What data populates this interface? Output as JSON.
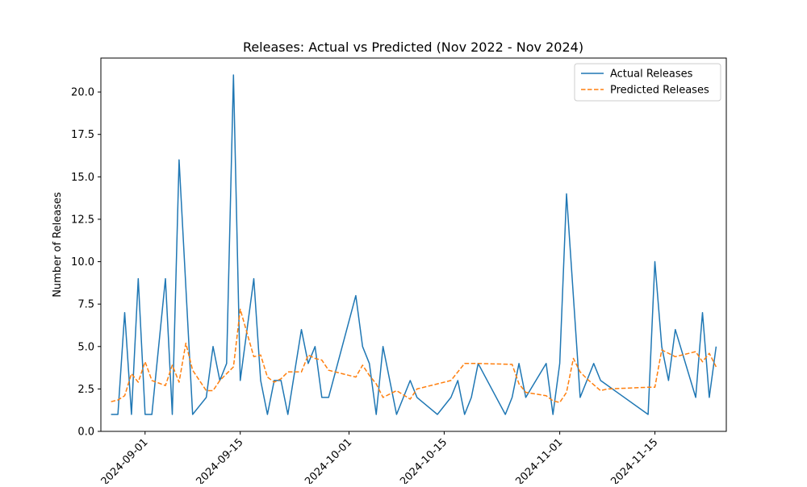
{
  "chart_data": {
    "type": "line",
    "title": "Releases: Actual vs Predicted (Nov 2022 - Nov 2024)",
    "xlabel": "",
    "ylabel": "Number of Releases",
    "ylim": [
      0,
      22
    ],
    "xlim": [
      "2024-08-25T12:00",
      "2024-11-25T12:00"
    ],
    "x_ticks": [
      "2024-09-01",
      "2024-09-15",
      "2024-10-01",
      "2024-10-15",
      "2024-11-01",
      "2024-11-15"
    ],
    "y_ticks": [
      0.0,
      2.5,
      5.0,
      7.5,
      10.0,
      12.5,
      15.0,
      17.5,
      20.0
    ],
    "grid": false,
    "legend_position": "upper right",
    "series": [
      {
        "name": "Actual Releases",
        "color": "#1f77b4",
        "style": "solid",
        "points": [
          [
            "2024-08-27",
            1
          ],
          [
            "2024-08-28",
            1
          ],
          [
            "2024-08-29",
            7
          ],
          [
            "2024-08-30",
            1
          ],
          [
            "2024-08-31",
            9
          ],
          [
            "2024-09-01",
            1
          ],
          [
            "2024-09-02",
            1
          ],
          [
            "2024-09-04",
            9
          ],
          [
            "2024-09-05",
            1
          ],
          [
            "2024-09-06",
            16
          ],
          [
            "2024-09-08",
            1
          ],
          [
            "2024-09-10",
            2
          ],
          [
            "2024-09-11",
            5
          ],
          [
            "2024-09-12",
            3
          ],
          [
            "2024-09-13",
            4
          ],
          [
            "2024-09-14",
            21
          ],
          [
            "2024-09-15",
            3
          ],
          [
            "2024-09-16",
            6
          ],
          [
            "2024-09-17",
            9
          ],
          [
            "2024-09-18",
            3
          ],
          [
            "2024-09-19",
            1
          ],
          [
            "2024-09-20",
            3
          ],
          [
            "2024-09-21",
            3
          ],
          [
            "2024-09-22",
            1
          ],
          [
            "2024-09-24",
            6
          ],
          [
            "2024-09-25",
            4
          ],
          [
            "2024-09-26",
            5
          ],
          [
            "2024-09-27",
            2
          ],
          [
            "2024-09-28",
            2
          ],
          [
            "2024-10-02",
            8
          ],
          [
            "2024-10-03",
            5
          ],
          [
            "2024-10-04",
            4
          ],
          [
            "2024-10-05",
            1
          ],
          [
            "2024-10-06",
            5
          ],
          [
            "2024-10-08",
            1
          ],
          [
            "2024-10-10",
            3
          ],
          [
            "2024-10-11",
            2
          ],
          [
            "2024-10-14",
            1
          ],
          [
            "2024-10-16",
            2
          ],
          [
            "2024-10-17",
            3
          ],
          [
            "2024-10-18",
            1
          ],
          [
            "2024-10-19",
            2
          ],
          [
            "2024-10-20",
            4
          ],
          [
            "2024-10-24",
            1
          ],
          [
            "2024-10-25",
            2
          ],
          [
            "2024-10-26",
            4
          ],
          [
            "2024-10-27",
            2
          ],
          [
            "2024-10-30",
            4
          ],
          [
            "2024-10-31",
            1
          ],
          [
            "2024-11-01",
            4
          ],
          [
            "2024-11-02",
            14
          ],
          [
            "2024-11-04",
            2
          ],
          [
            "2024-11-06",
            4
          ],
          [
            "2024-11-07",
            3
          ],
          [
            "2024-11-14",
            1
          ],
          [
            "2024-11-15",
            10
          ],
          [
            "2024-11-16",
            5
          ],
          [
            "2024-11-17",
            3
          ],
          [
            "2024-11-18",
            6
          ],
          [
            "2024-11-21",
            2
          ],
          [
            "2024-11-22",
            7
          ],
          [
            "2024-11-23",
            2
          ],
          [
            "2024-11-24",
            5
          ]
        ]
      },
      {
        "name": "Predicted Releases",
        "color": "#ff7f0e",
        "style": "dashed",
        "points": [
          [
            "2024-08-27",
            1.75
          ],
          [
            "2024-08-28",
            1.85
          ],
          [
            "2024-08-29",
            2.1
          ],
          [
            "2024-08-30",
            3.4
          ],
          [
            "2024-08-31",
            2.9
          ],
          [
            "2024-09-01",
            4.1
          ],
          [
            "2024-09-02",
            3.0
          ],
          [
            "2024-09-04",
            2.7
          ],
          [
            "2024-09-05",
            3.9
          ],
          [
            "2024-09-06",
            2.9
          ],
          [
            "2024-09-07",
            5.2
          ],
          [
            "2024-09-08",
            3.6
          ],
          [
            "2024-09-10",
            2.4
          ],
          [
            "2024-09-11",
            2.4
          ],
          [
            "2024-09-12",
            3.0
          ],
          [
            "2024-09-14",
            3.8
          ],
          [
            "2024-09-15",
            7.2
          ],
          [
            "2024-09-17",
            4.4
          ],
          [
            "2024-09-18",
            4.5
          ],
          [
            "2024-09-19",
            3.2
          ],
          [
            "2024-09-20",
            2.9
          ],
          [
            "2024-09-21",
            3.1
          ],
          [
            "2024-09-22",
            3.5
          ],
          [
            "2024-09-24",
            3.5
          ],
          [
            "2024-09-25",
            4.5
          ],
          [
            "2024-09-26",
            4.3
          ],
          [
            "2024-09-27",
            4.2
          ],
          [
            "2024-09-28",
            3.6
          ],
          [
            "2024-10-02",
            3.2
          ],
          [
            "2024-10-03",
            3.9
          ],
          [
            "2024-10-04",
            3.3
          ],
          [
            "2024-10-05",
            2.8
          ],
          [
            "2024-10-06",
            2.0
          ],
          [
            "2024-10-08",
            2.4
          ],
          [
            "2024-10-10",
            1.9
          ],
          [
            "2024-10-11",
            2.5
          ],
          [
            "2024-10-14",
            2.8
          ],
          [
            "2024-10-16",
            3.0
          ],
          [
            "2024-10-17",
            3.5
          ],
          [
            "2024-10-18",
            4.0
          ],
          [
            "2024-10-20",
            4.0
          ],
          [
            "2024-10-25",
            3.95
          ],
          [
            "2024-10-26",
            2.8
          ],
          [
            "2024-10-27",
            2.3
          ],
          [
            "2024-10-30",
            2.1
          ],
          [
            "2024-10-31",
            1.8
          ],
          [
            "2024-11-01",
            1.7
          ],
          [
            "2024-11-02",
            2.3
          ],
          [
            "2024-11-03",
            4.3
          ],
          [
            "2024-11-04",
            3.5
          ],
          [
            "2024-11-05",
            3.1
          ],
          [
            "2024-11-07",
            2.4
          ],
          [
            "2024-11-08",
            2.5
          ],
          [
            "2024-11-14",
            2.6
          ],
          [
            "2024-11-15",
            2.6
          ],
          [
            "2024-11-16",
            4.8
          ],
          [
            "2024-11-18",
            4.4
          ],
          [
            "2024-11-20",
            4.6
          ],
          [
            "2024-11-21",
            4.7
          ],
          [
            "2024-11-22",
            4.1
          ],
          [
            "2024-11-23",
            4.6
          ],
          [
            "2024-11-24",
            3.8
          ]
        ]
      }
    ]
  }
}
